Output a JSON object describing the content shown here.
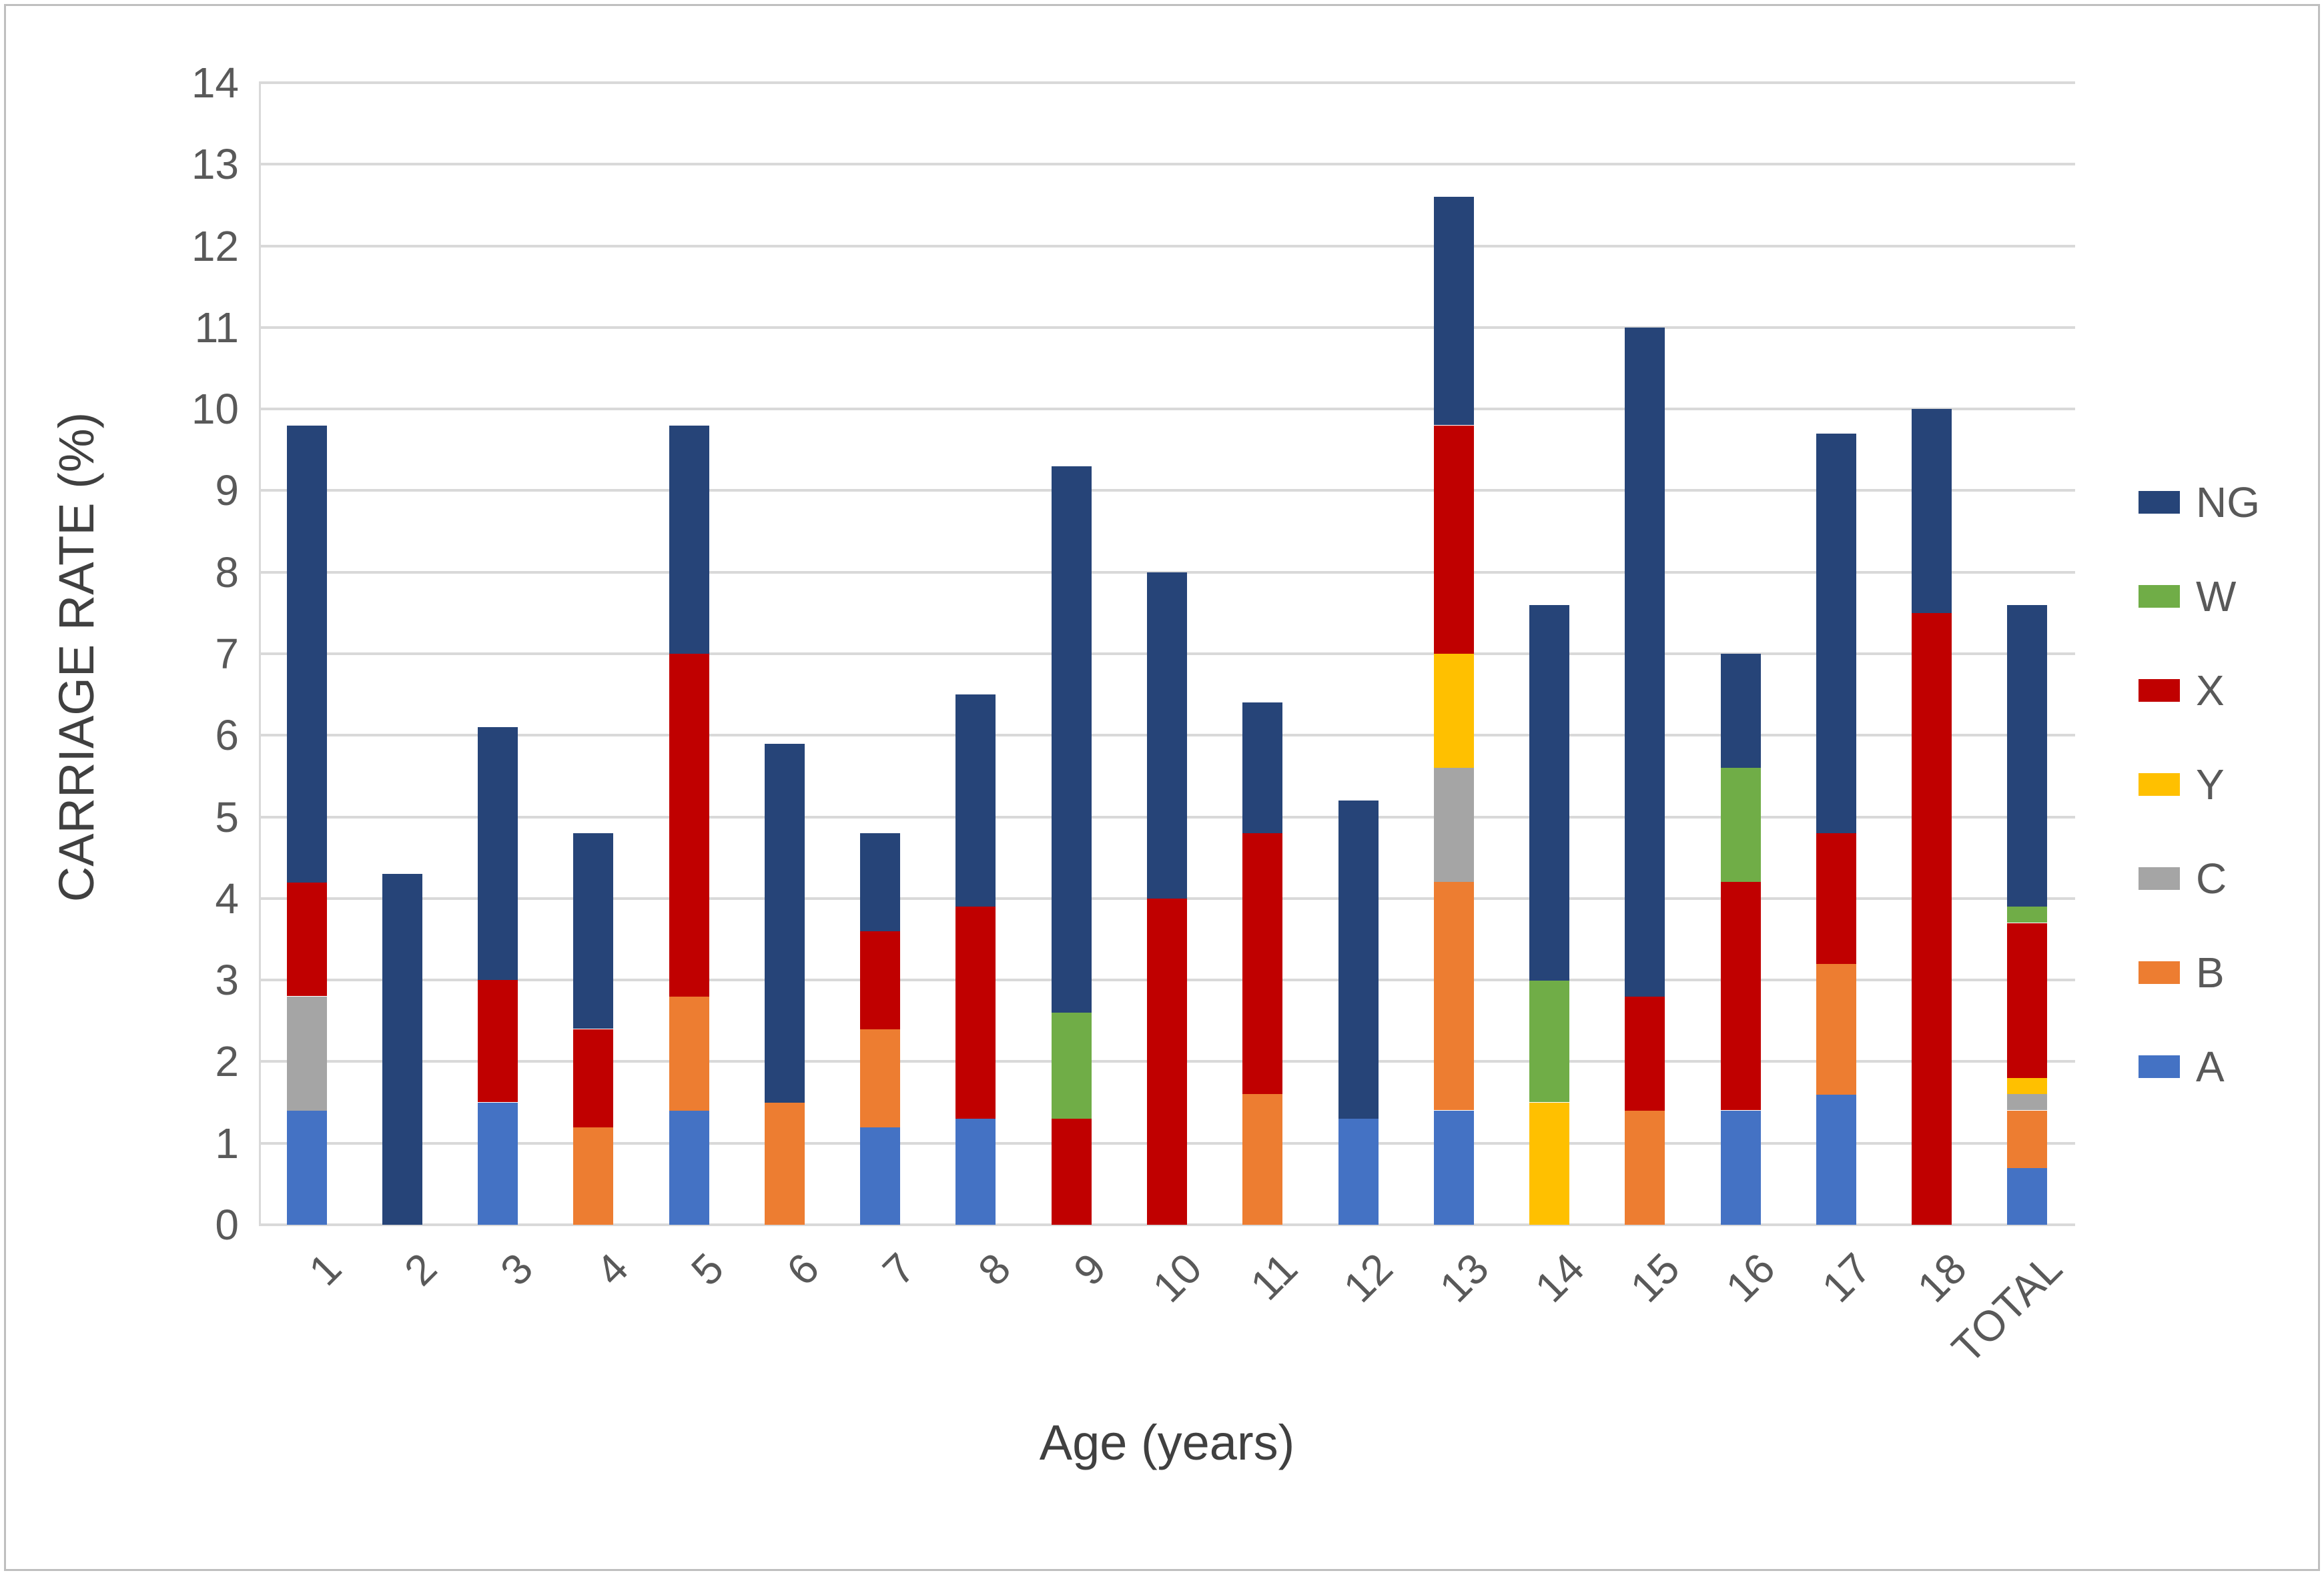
{
  "figure": {
    "background": "#FFFFFF",
    "border_color": "#BFBFBF",
    "gridline_color": "#D9D9D9",
    "tick_text_color": "#595959",
    "axis_title_color": "#404040"
  },
  "chart_data": {
    "type": "bar",
    "stacked": true,
    "title": "",
    "xlabel": "Age (years)",
    "ylabel": "CARRIAGE RATE (%)",
    "ylim": [
      0,
      14
    ],
    "ytick_step": 1,
    "yticks": [
      "0",
      "1",
      "2",
      "3",
      "4",
      "5",
      "6",
      "7",
      "8",
      "9",
      "10",
      "11",
      "12",
      "13",
      "14"
    ],
    "grid": true,
    "categories": [
      "1",
      "2",
      "3",
      "4",
      "5",
      "6",
      "7",
      "8",
      "9",
      "10",
      "11",
      "12",
      "13",
      "14",
      "15",
      "16",
      "17",
      "18",
      "TOTAL"
    ],
    "series": [
      {
        "name": "A",
        "color": "#4472C4",
        "values": [
          1.4,
          0,
          1.5,
          0,
          1.4,
          0,
          1.2,
          1.3,
          0,
          0,
          0,
          1.3,
          1.4,
          0,
          0,
          1.4,
          1.6,
          0,
          0.7
        ]
      },
      {
        "name": "B",
        "color": "#ED7D31",
        "values": [
          0,
          0,
          0,
          1.2,
          1.4,
          1.5,
          1.2,
          0,
          0,
          0,
          1.6,
          0,
          2.8,
          0,
          1.4,
          0,
          1.6,
          0,
          0.7
        ]
      },
      {
        "name": "C",
        "color": "#A5A5A5",
        "values": [
          1.4,
          0,
          0,
          0,
          0,
          0,
          0,
          0,
          0,
          0,
          0,
          0,
          1.4,
          0,
          0,
          0,
          0,
          0,
          0.2
        ]
      },
      {
        "name": "Y",
        "color": "#FFC000",
        "values": [
          0,
          0,
          0,
          0,
          0,
          0,
          0,
          0,
          0,
          0,
          0,
          0,
          1.4,
          1.5,
          0,
          0,
          0,
          0,
          0.2
        ]
      },
      {
        "name": "X",
        "color": "#C00000",
        "values": [
          1.4,
          0,
          1.5,
          1.2,
          4.2,
          0,
          1.2,
          2.6,
          1.3,
          4.0,
          3.2,
          0,
          2.8,
          0,
          1.4,
          2.8,
          1.6,
          7.5,
          1.9
        ]
      },
      {
        "name": "W",
        "color": "#70AD47",
        "values": [
          0,
          0,
          0,
          0,
          0,
          0,
          0,
          0,
          1.3,
          0,
          0,
          0,
          0,
          1.5,
          0,
          1.4,
          0,
          0,
          0.2
        ]
      },
      {
        "name": "NG",
        "color": "#264478",
        "values": [
          5.6,
          4.3,
          3.1,
          2.4,
          2.8,
          4.4,
          1.2,
          2.6,
          6.7,
          4.0,
          1.6,
          3.9,
          2.8,
          4.6,
          8.2,
          1.4,
          4.9,
          2.5,
          3.7
        ]
      }
    ],
    "bar_totals": [
      9.8,
      4.3,
      6.1,
      4.8,
      9.8,
      5.9,
      4.8,
      6.5,
      9.3,
      8.0,
      6.4,
      5.2,
      12.6,
      7.6,
      11.0,
      7.0,
      9.7,
      10.0,
      7.6
    ],
    "legend": {
      "position": "right",
      "order": [
        "NG",
        "W",
        "X",
        "Y",
        "C",
        "B",
        "A"
      ]
    }
  }
}
